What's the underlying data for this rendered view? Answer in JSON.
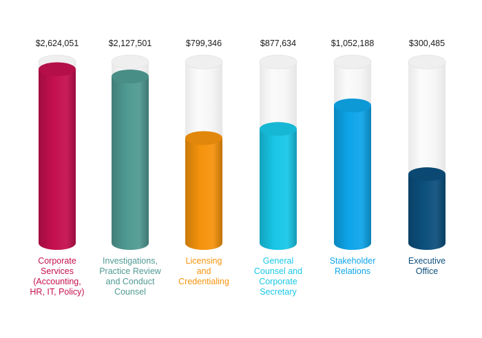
{
  "chart_data": {
    "type": "bar",
    "style": "3d-cylinder",
    "value_labels": [
      "$2,624,051",
      "$2,127,501",
      "$799,346",
      "$877,634",
      "$1,052,188",
      "$300,485"
    ],
    "categories": [
      {
        "lines": [
          "Corporate",
          "Services",
          "(Accounting,",
          "HR, IT, Policy)"
        ],
        "color": "#c4104f"
      },
      {
        "lines": [
          "Investigations,",
          "Practice Review",
          "and Conduct",
          "Counsel"
        ],
        "color": "#4f9a92"
      },
      {
        "lines": [
          "Licensing",
          "and",
          "Credentialing"
        ],
        "color": "#f5930c"
      },
      {
        "lines": [
          "General",
          "Counsel and",
          "Corporate",
          "Secretary"
        ],
        "color": "#18c7e6"
      },
      {
        "lines": [
          "Stakeholder",
          "Relations"
        ],
        "color": "#0ea5e9"
      },
      {
        "lines": [
          "Executive",
          "Office"
        ],
        "color": "#0c4f7c"
      }
    ],
    "fill_fraction": [
      0.96,
      0.92,
      0.58,
      0.63,
      0.76,
      0.38
    ],
    "legend": "none",
    "grid": false
  }
}
